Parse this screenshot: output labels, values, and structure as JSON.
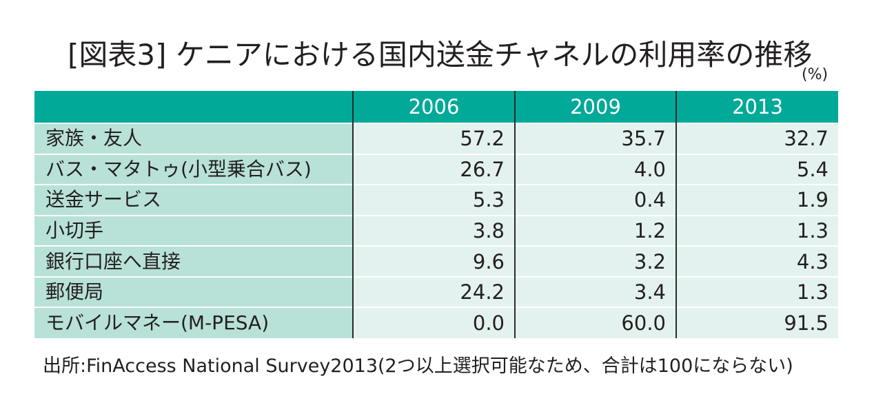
{
  "title": "[図表3] ケニアにおける国内送金チャネルの利用率の推移",
  "unit": "(%)",
  "source": "出所:FinAccess National Survey2013(2つ以上選択可能なため、合計は100にならない)",
  "colors": {
    "header_bg": "#00a998",
    "label_bg": "#b8e1d8",
    "value_bg": "#e3f2ee"
  },
  "chart_data": {
    "type": "table",
    "title": "[図表3] ケニアにおける国内送金チャネルの利用率の推移",
    "unit": "(%)",
    "columns": [
      "2006",
      "2009",
      "2013"
    ],
    "rows": [
      {
        "label": "家族・友人",
        "values": [
          "57.2",
          "35.7",
          "32.7"
        ]
      },
      {
        "label": "バス・マタトゥ(小型乗合バス)",
        "values": [
          "26.7",
          "4.0",
          "5.4"
        ]
      },
      {
        "label": "送金サービス",
        "values": [
          "5.3",
          "0.4",
          "1.9"
        ]
      },
      {
        "label": "小切手",
        "values": [
          "3.8",
          "1.2",
          "1.3"
        ]
      },
      {
        "label": "銀行口座へ直接",
        "values": [
          "9.6",
          "3.2",
          "4.3"
        ]
      },
      {
        "label": "郵便局",
        "values": [
          "24.2",
          "3.4",
          "1.3"
        ]
      },
      {
        "label": "モバイルマネー(M-PESA)",
        "values": [
          "0.0",
          "60.0",
          "91.5"
        ]
      }
    ]
  }
}
